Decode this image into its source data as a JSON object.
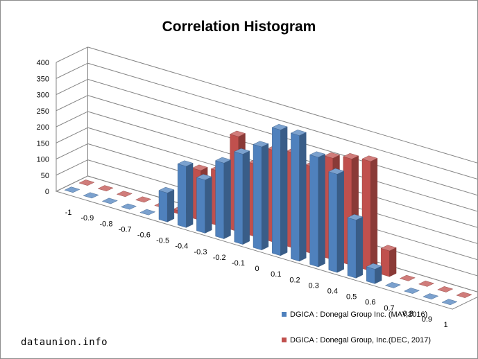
{
  "chart_data": {
    "type": "bar",
    "title": "Correlation Histogram",
    "xlabel": "",
    "ylabel": "",
    "ylim": [
      0,
      400
    ],
    "yticks": [
      0,
      50,
      100,
      150,
      200,
      250,
      300,
      350,
      400
    ],
    "grid": true,
    "legend_position": "bottom-right",
    "categories": [
      "-1",
      "-0.9",
      "-0.8",
      "-0.7",
      "-0.6",
      "-0.5",
      "-0.4",
      "-0.3",
      "-0.2",
      "-0.1",
      "0",
      "0.1",
      "0.2",
      "0.3",
      "0.4",
      "0.5",
      "0.6",
      "0.7",
      "0.8",
      "0.9",
      "1"
    ],
    "series": [
      {
        "name": "DGICA : Donegal Group Inc. (MAY,2016)",
        "color": "#4f81bd",
        "values": [
          0,
          0,
          0,
          0,
          0,
          90,
          190,
          165,
          235,
          280,
          320,
          390,
          390,
          340,
          305,
          180,
          45,
          0,
          0,
          0,
          0
        ]
      },
      {
        "name": "DGICA : Donegal Group, Inc.(DEC, 2017)",
        "color": "#c0504d",
        "values": [
          0,
          0,
          0,
          0,
          0,
          10,
          155,
          170,
          295,
          225,
          285,
          295,
          270,
          315,
          330,
          340,
          80,
          0,
          0,
          0,
          0
        ]
      }
    ]
  },
  "watermark": "dataunion.info"
}
